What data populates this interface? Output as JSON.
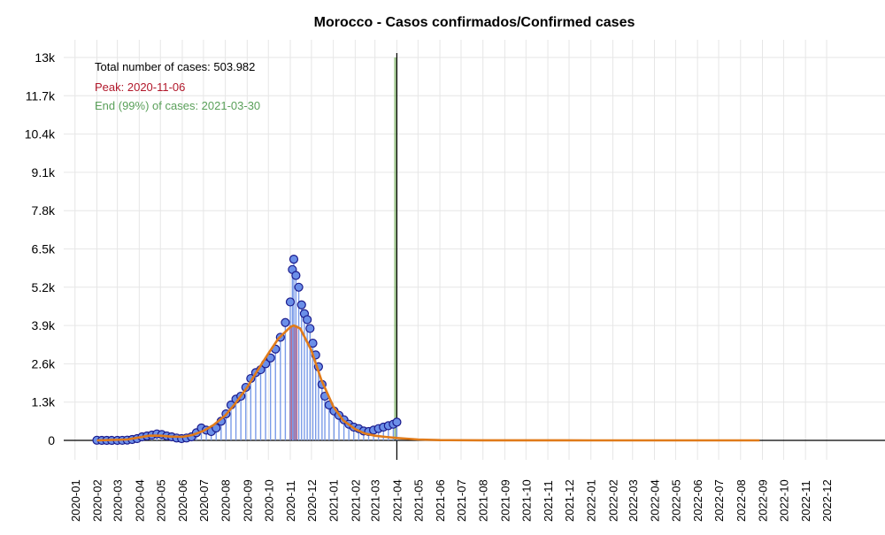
{
  "chart_data": {
    "type": "scatter",
    "title": "Morocco - Casos confirmados/Confirmed cases",
    "xlabel": "",
    "ylabel": "",
    "ylim": [
      0,
      13000
    ],
    "y_ticks": [
      0,
      1300,
      2600,
      3900,
      5200,
      6500,
      7800,
      9100,
      10400,
      11700,
      13000
    ],
    "y_tick_labels": [
      "0",
      "1.3k",
      "2.6k",
      "3.9k",
      "5.2k",
      "6.5k",
      "7.8k",
      "9.1k",
      "10.4k",
      "11.7k",
      "13k"
    ],
    "x_range": [
      "2019-12-16",
      "2022-12-31"
    ],
    "x_tick_labels": [
      "2020-01",
      "2020-02",
      "2020-03",
      "2020-04",
      "2020-05",
      "2020-06",
      "2020-07",
      "2020-08",
      "2020-09",
      "2020-10",
      "2020-11",
      "2020-12",
      "2021-01",
      "2021-02",
      "2021-03",
      "2021-04",
      "2021-05",
      "2021-06",
      "2021-07",
      "2021-08",
      "2021-09",
      "2021-10",
      "2021-11",
      "2021-12",
      "2022-01",
      "2022-02",
      "2022-03",
      "2022-04",
      "2022-05",
      "2022-06",
      "2022-07",
      "2022-08",
      "2022-09",
      "2022-10",
      "2022-11",
      "2022-12"
    ],
    "grid": true,
    "annotations": {
      "total": "Total number of cases: 503.982",
      "peak": "Peak: 2020-11-06",
      "end": "End (99%) of cases: 2021-03-30"
    },
    "today_date": "2021-04-01",
    "peak_date": "2020-11-06",
    "end_date": "2021-03-30",
    "colors": {
      "points_fill": "#6b8fe8",
      "points_stroke": "#1a1a8c",
      "stems": "#7a9be8",
      "fit_curve": "#e07b1a",
      "peak_band": "#cc2233",
      "end_band": "#6aa84f",
      "peak_text": "#b2182b",
      "end_text": "#5aa05a"
    },
    "daily_points": [
      [
        "2020-02-01",
        5
      ],
      [
        "2020-02-08",
        0
      ],
      [
        "2020-02-15",
        0
      ],
      [
        "2020-02-22",
        0
      ],
      [
        "2020-03-01",
        1
      ],
      [
        "2020-03-08",
        2
      ],
      [
        "2020-03-15",
        10
      ],
      [
        "2020-03-22",
        30
      ],
      [
        "2020-03-29",
        60
      ],
      [
        "2020-04-05",
        120
      ],
      [
        "2020-04-12",
        150
      ],
      [
        "2020-04-19",
        180
      ],
      [
        "2020-04-26",
        220
      ],
      [
        "2020-05-03",
        200
      ],
      [
        "2020-05-10",
        150
      ],
      [
        "2020-05-17",
        120
      ],
      [
        "2020-05-24",
        80
      ],
      [
        "2020-05-31",
        60
      ],
      [
        "2020-06-07",
        80
      ],
      [
        "2020-06-14",
        120
      ],
      [
        "2020-06-21",
        260
      ],
      [
        "2020-06-28",
        420
      ],
      [
        "2020-07-05",
        350
      ],
      [
        "2020-07-12",
        300
      ],
      [
        "2020-07-19",
        420
      ],
      [
        "2020-07-26",
        650
      ],
      [
        "2020-08-02",
        900
      ],
      [
        "2020-08-09",
        1200
      ],
      [
        "2020-08-16",
        1400
      ],
      [
        "2020-08-23",
        1500
      ],
      [
        "2020-08-30",
        1800
      ],
      [
        "2020-09-06",
        2100
      ],
      [
        "2020-09-13",
        2300
      ],
      [
        "2020-09-20",
        2400
      ],
      [
        "2020-09-27",
        2600
      ],
      [
        "2020-10-04",
        2800
      ],
      [
        "2020-10-11",
        3100
      ],
      [
        "2020-10-18",
        3500
      ],
      [
        "2020-10-25",
        4000
      ],
      [
        "2020-11-01",
        4700
      ],
      [
        "2020-11-04",
        5800
      ],
      [
        "2020-11-06",
        6150
      ],
      [
        "2020-11-09",
        5600
      ],
      [
        "2020-11-13",
        5200
      ],
      [
        "2020-11-17",
        4600
      ],
      [
        "2020-11-21",
        4300
      ],
      [
        "2020-11-25",
        4100
      ],
      [
        "2020-11-29",
        3800
      ],
      [
        "2020-12-03",
        3300
      ],
      [
        "2020-12-07",
        2900
      ],
      [
        "2020-12-11",
        2500
      ],
      [
        "2020-12-16",
        1900
      ],
      [
        "2020-12-20",
        1500
      ],
      [
        "2020-12-26",
        1200
      ],
      [
        "2021-01-02",
        1000
      ],
      [
        "2021-01-09",
        850
      ],
      [
        "2021-01-16",
        700
      ],
      [
        "2021-01-23",
        550
      ],
      [
        "2021-01-30",
        450
      ],
      [
        "2021-02-06",
        400
      ],
      [
        "2021-02-13",
        320
      ],
      [
        "2021-02-20",
        300
      ],
      [
        "2021-02-27",
        350
      ],
      [
        "2021-03-06",
        400
      ],
      [
        "2021-03-13",
        450
      ],
      [
        "2021-03-20",
        500
      ],
      [
        "2021-03-27",
        550
      ],
      [
        "2021-04-01",
        620
      ]
    ],
    "fit_curve": [
      [
        "2020-02-01",
        0
      ],
      [
        "2020-03-15",
        30
      ],
      [
        "2020-04-15",
        160
      ],
      [
        "2020-05-01",
        160
      ],
      [
        "2020-05-15",
        130
      ],
      [
        "2020-06-01",
        120
      ],
      [
        "2020-06-15",
        180
      ],
      [
        "2020-07-01",
        320
      ],
      [
        "2020-07-15",
        520
      ],
      [
        "2020-08-01",
        850
      ],
      [
        "2020-08-15",
        1250
      ],
      [
        "2020-09-01",
        1800
      ],
      [
        "2020-09-15",
        2350
      ],
      [
        "2020-10-01",
        2950
      ],
      [
        "2020-10-15",
        3450
      ],
      [
        "2020-11-01",
        3850
      ],
      [
        "2020-11-06",
        3900
      ],
      [
        "2020-11-15",
        3800
      ],
      [
        "2020-12-01",
        3050
      ],
      [
        "2020-12-15",
        2050
      ],
      [
        "2021-01-01",
        1150
      ],
      [
        "2021-01-15",
        680
      ],
      [
        "2021-02-01",
        380
      ],
      [
        "2021-02-15",
        230
      ],
      [
        "2021-03-01",
        160
      ],
      [
        "2021-03-15",
        120
      ],
      [
        "2021-04-01",
        80
      ],
      [
        "2021-05-01",
        30
      ],
      [
        "2021-06-01",
        10
      ],
      [
        "2021-08-01",
        2
      ],
      [
        "2022-01-01",
        0
      ],
      [
        "2022-08-28",
        0
      ]
    ]
  }
}
